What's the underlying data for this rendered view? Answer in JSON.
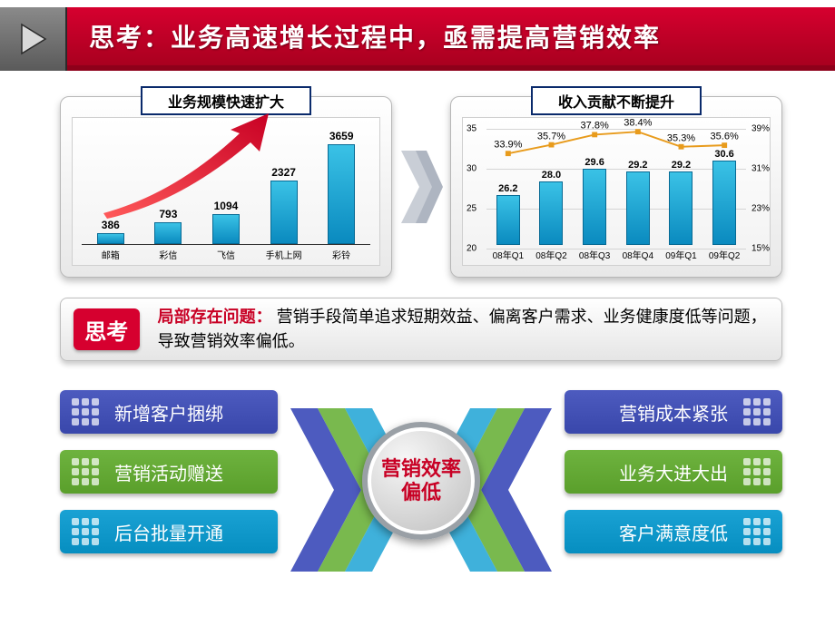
{
  "title": "思考：业务高速增长过程中，亟需提高营销效率",
  "chart1": {
    "title": "业务规模快速扩大",
    "type": "bar",
    "categories": [
      "邮箱",
      "彩信",
      "飞信",
      "手机上网",
      "彩铃"
    ],
    "values": [
      386,
      793,
      1094,
      2327,
      3659
    ],
    "ymax": 3659,
    "bar_color": "#1aa2d4",
    "arrow_color": "#d6002f"
  },
  "chart2": {
    "title": "收入贡献不断提升",
    "type": "bar+line",
    "categories": [
      "08年Q1",
      "08年Q2",
      "08年Q3",
      "08年Q4",
      "09年Q1",
      "09年Q2"
    ],
    "bar_values": [
      26.2,
      28.0,
      29.6,
      29.2,
      29.2,
      30.6
    ],
    "y_left": {
      "min": 20,
      "max": 35,
      "ticks": [
        20,
        25,
        30,
        35
      ]
    },
    "line_values_pct": [
      33.9,
      35.7,
      37.8,
      38.4,
      35.3,
      35.6
    ],
    "y_right": {
      "min": 15,
      "max": 39,
      "ticks": [
        15,
        23,
        31,
        39
      ]
    },
    "bar_color": "#1aa2d4",
    "line_color": "#e89b1c",
    "grid_color": "#d5d5d5"
  },
  "think": {
    "badge": "思考",
    "highlight": "局部存在问题：",
    "text": "营销手段简单追求短期效益、偏离客户需求、业务健康度低等问题，导致营销效率偏低。"
  },
  "pills_left": [
    {
      "label": "新增客户捆绑",
      "color": "#4d5bbf"
    },
    {
      "label": "营销活动赠送",
      "color": "#6eb33f"
    },
    {
      "label": "后台批量开通",
      "color": "#1aa2d4"
    }
  ],
  "pills_right": [
    {
      "label": "营销成本紧张",
      "color": "#4d5bbf"
    },
    {
      "label": "业务大进大出",
      "color": "#6eb33f"
    },
    {
      "label": "客户满意度低",
      "color": "#1aa2d4"
    }
  ],
  "chevron_colors": [
    "#4d5bbf",
    "#6eb33f",
    "#1aa2d4"
  ],
  "center_label": "营销效率偏低"
}
